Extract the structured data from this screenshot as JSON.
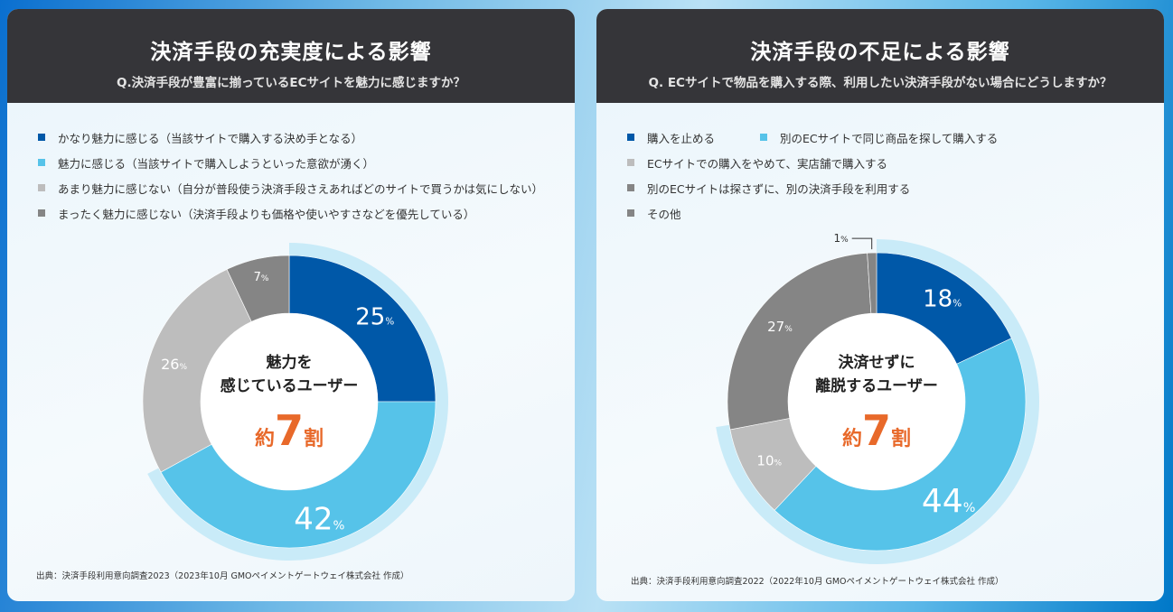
{
  "colors": {
    "dark_blue": "#0058a8",
    "light_blue": "#56c3e9",
    "light_gray": "#bdbdbd",
    "dark_gray": "#858585",
    "halo": "#c9ebf8",
    "accent": "#e8692a"
  },
  "chart_data": [
    {
      "type": "pie",
      "title": "決済手段の充実度による影響",
      "subtitle": "Q.決済手段が豊富に揃っているECサイトを魅力に感じますか？",
      "categories": [
        "かなり魅力に感じる（当該サイトで購入する決め手となる）",
        "魅力に感じる（当該サイトで購入しようといった意欲が湧く）",
        "あまり魅力に感じない（自分が普段使う決済手段さえあればどのサイトで買うかは気にしない）",
        "まったく魅力に感じない（決済手段よりも価格や使いやすさなどを優先している）"
      ],
      "values": [
        25,
        42,
        26,
        7
      ],
      "labels": [
        "25",
        "42",
        "26",
        "7"
      ],
      "unit": "%",
      "highlight_count": 2,
      "center": {
        "line1": "魅力を",
        "line2": "感じているユーザー",
        "pre": "約",
        "num": "7",
        "post": "割"
      },
      "source": "出典：決済手段利用意向調査2023（2023年10月 GMOペイメントゲートウェイ株式会社 作成）"
    },
    {
      "type": "pie",
      "title": "決済手段の不足による影響",
      "subtitle": "Q. ECサイトで物品を購入する際、利用したい決済手段がない場合にどうしますか？",
      "categories": [
        "購入を止める",
        "別のECサイトで同じ商品を探して購入する",
        "ECサイトでの購入をやめて、実店舗で購入する",
        "別のECサイトは探さずに、別の決済手段を利用する",
        "その他"
      ],
      "values": [
        18,
        44,
        10,
        27,
        1
      ],
      "labels": [
        "18",
        "44",
        "10",
        "27",
        "1"
      ],
      "unit": "%",
      "highlight_count": 3,
      "center": {
        "line1": "決済せずに",
        "line2": "離脱するユーザー",
        "pre": "約",
        "num": "7",
        "post": "割"
      },
      "source": "出典：決済手段利用意向調査2022（2022年10月 GMOペイメントゲートウェイ株式会社 作成）"
    }
  ]
}
